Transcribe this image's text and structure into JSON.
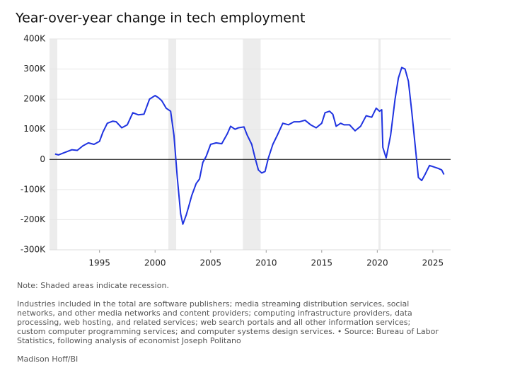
{
  "chart_data": {
    "type": "line",
    "title": "Year-over-year change in tech employment",
    "x": [
      1991.0,
      1991.3,
      1992,
      1992.5,
      1993,
      1993.5,
      1994,
      1994.5,
      1995,
      1995.3,
      1995.7,
      1996.2,
      1996.5,
      1997,
      1997.5,
      1998,
      1998.5,
      1999,
      1999.5,
      2000,
      2000.3,
      2000.6,
      2001,
      2001.4,
      2001.7,
      2002.0,
      2002.3,
      2002.5,
      2002.8,
      2003.0,
      2003.3,
      2003.7,
      2004.0,
      2004.3,
      2004.6,
      2005,
      2005.5,
      2006,
      2006.5,
      2006.8,
      2007.2,
      2007.5,
      2008,
      2008.3,
      2008.7,
      2009.0,
      2009.3,
      2009.6,
      2009.9,
      2010.2,
      2010.6,
      2011.0,
      2011.5,
      2012,
      2012.5,
      2013,
      2013.5,
      2014,
      2014.5,
      2015.0,
      2015.3,
      2015.7,
      2016.0,
      2016.3,
      2016.7,
      2017,
      2017.5,
      2018,
      2018.5,
      2019,
      2019.5,
      2019.9,
      2020.2,
      2020.4,
      2020.5,
      2020.8,
      2021.2,
      2021.6,
      2021.9,
      2022.2,
      2022.5,
      2022.8,
      2023.1,
      2023.4,
      2023.7,
      2024.0,
      2024.3,
      2024.7,
      2025.1,
      2025.5,
      2025.8,
      2026.0
    ],
    "values": [
      18000,
      15000,
      25000,
      32000,
      30000,
      45000,
      55000,
      50000,
      60000,
      90000,
      120000,
      127000,
      125000,
      105000,
      115000,
      155000,
      148000,
      150000,
      200000,
      212000,
      205000,
      195000,
      170000,
      160000,
      80000,
      -60000,
      -180000,
      -215000,
      -185000,
      -160000,
      -120000,
      -80000,
      -65000,
      -10000,
      10000,
      50000,
      55000,
      52000,
      85000,
      110000,
      100000,
      105000,
      108000,
      80000,
      50000,
      5000,
      -35000,
      -45000,
      -40000,
      5000,
      50000,
      80000,
      120000,
      115000,
      125000,
      125000,
      130000,
      115000,
      105000,
      120000,
      155000,
      160000,
      150000,
      110000,
      120000,
      115000,
      115000,
      95000,
      110000,
      145000,
      140000,
      170000,
      160000,
      165000,
      40000,
      5000,
      80000,
      200000,
      270000,
      305000,
      300000,
      260000,
      160000,
      50000,
      -60000,
      -70000,
      -50000,
      -20000,
      -25000,
      -30000,
      -35000,
      -50000
    ],
    "color": "#1f33e0",
    "recessions": [
      [
        1990.5,
        1991.2
      ],
      [
        2001.2,
        2001.9
      ],
      [
        2007.9,
        2009.5
      ],
      [
        2020.1,
        2020.3
      ]
    ],
    "xlim": [
      1990.5,
      2026.6
    ],
    "xticks": [
      1995,
      2000,
      2005,
      2010,
      2015,
      2020,
      2025
    ],
    "ylim": [
      -300000,
      400000
    ],
    "yticks": [
      {
        "value": -300000,
        "label": "-300K"
      },
      {
        "value": -200000,
        "label": "-200K"
      },
      {
        "value": -100000,
        "label": "-100K"
      },
      0,
      {
        "value": 100000,
        "label": "100K"
      },
      {
        "value": 200000,
        "label": "200K"
      },
      {
        "value": 300000,
        "label": "300K"
      },
      {
        "value": 400000,
        "label": "400K"
      }
    ],
    "grid": true,
    "note": "Note: Shaded areas indicate recession.",
    "source": "Industries included in the total are software publishers; media streaming distribution services, social networks, and other media networks and content providers; computing infrastructure providers, data processing, web hosting, and related services; web search portals and all other information services; custom computer programming services; and computer systems design services. • Source: Bureau of Labor Statistics, following analysis of economist Joseph Politano",
    "credit": "Madison Hoff/BI"
  }
}
